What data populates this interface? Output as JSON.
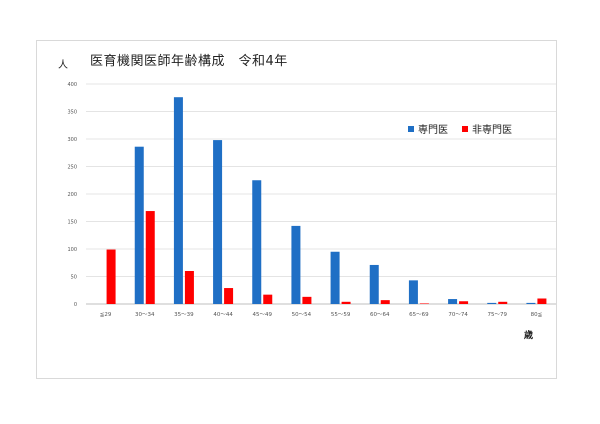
{
  "chart_data": {
    "type": "bar",
    "title": "医育機関医師年齢構成　令和4年",
    "ylabel": "人",
    "xlabel": "歳",
    "ylim": [
      0,
      400
    ],
    "yticks": [
      0,
      50,
      100,
      150,
      200,
      250,
      300,
      350,
      400
    ],
    "categories": [
      "≦29",
      "30～34",
      "35～39",
      "40～44",
      "45～49",
      "50～54",
      "55～59",
      "60～64",
      "65～69",
      "70～74",
      "75～79",
      "80≦"
    ],
    "series": [
      {
        "name": "専門医",
        "color": "#1f6fc5",
        "values": [
          0,
          286,
          376,
          298,
          225,
          142,
          95,
          71,
          43,
          9,
          2,
          2
        ]
      },
      {
        "name": "非専門医",
        "color": "#ff0000",
        "values": [
          99,
          169,
          60,
          29,
          17,
          13,
          4,
          7,
          1,
          5,
          4,
          10
        ]
      }
    ],
    "grid": true,
    "legend_position": "top-right"
  }
}
